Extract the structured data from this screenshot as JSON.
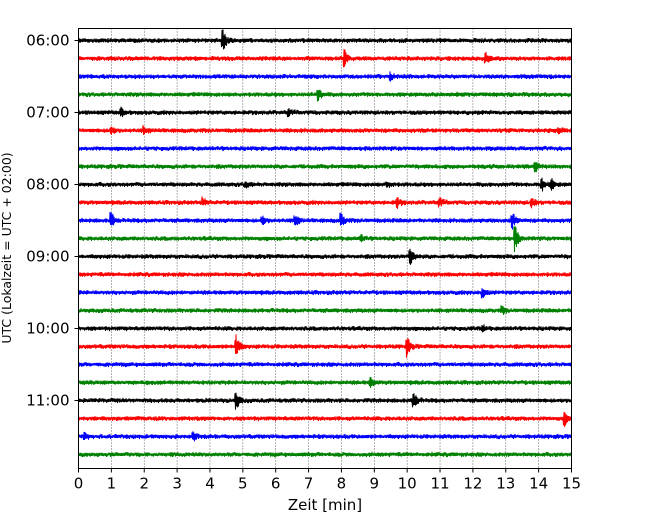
{
  "chart_data": {
    "type": "line",
    "title": "",
    "xlabel": "Zeit  [min]",
    "ylabel": "UTC (Lokalzeit = UTC + 02:00)",
    "xlim": [
      0,
      15
    ],
    "x_ticks": [
      "0",
      "1",
      "2",
      "3",
      "4",
      "5",
      "6",
      "7",
      "8",
      "9",
      "10",
      "11",
      "12",
      "13",
      "14",
      "15"
    ],
    "y_ticks": [
      "06:00",
      "07:00",
      "08:00",
      "09:00",
      "10:00",
      "11:00"
    ],
    "y_tick_row_index": [
      0,
      4,
      8,
      12,
      16,
      20
    ],
    "grid": "vertical dotted",
    "series_colors": [
      "#000000",
      "#ff0000",
      "#0000ff",
      "#008000"
    ],
    "traces": [
      {
        "start": "06:00",
        "color": "#000000",
        "events": [
          [
            4.4,
            1.0
          ]
        ]
      },
      {
        "start": "06:15",
        "color": "#ff0000",
        "events": [
          [
            8.1,
            0.8
          ],
          [
            12.4,
            0.5
          ]
        ]
      },
      {
        "start": "06:30",
        "color": "#0000ff",
        "events": [
          [
            9.5,
            0.3
          ]
        ]
      },
      {
        "start": "06:45",
        "color": "#008000",
        "events": [
          [
            7.3,
            0.6
          ]
        ]
      },
      {
        "start": "07:00",
        "color": "#000000",
        "events": [
          [
            1.3,
            0.4
          ],
          [
            6.4,
            0.3
          ]
        ]
      },
      {
        "start": "07:15",
        "color": "#ff0000",
        "events": [
          [
            1.0,
            0.4
          ],
          [
            2.0,
            0.35
          ],
          [
            14.6,
            0.3
          ]
        ]
      },
      {
        "start": "07:30",
        "color": "#0000ff",
        "events": []
      },
      {
        "start": "07:45",
        "color": "#008000",
        "events": [
          [
            13.9,
            0.8
          ]
        ]
      },
      {
        "start": "08:00",
        "color": "#000000",
        "events": [
          [
            5.1,
            0.3
          ],
          [
            9.4,
            0.3
          ],
          [
            14.1,
            0.6
          ],
          [
            14.4,
            0.5
          ]
        ]
      },
      {
        "start": "08:15",
        "color": "#ff0000",
        "events": [
          [
            3.8,
            0.4
          ],
          [
            9.7,
            0.5
          ],
          [
            11.0,
            0.4
          ],
          [
            13.8,
            0.45
          ]
        ]
      },
      {
        "start": "08:30",
        "color": "#0000ff",
        "events": [
          [
            1.0,
            0.7
          ],
          [
            5.6,
            0.4
          ],
          [
            6.6,
            0.6
          ],
          [
            8.0,
            0.6
          ],
          [
            13.2,
            0.8
          ]
        ]
      },
      {
        "start": "08:45",
        "color": "#008000",
        "events": [
          [
            8.6,
            0.3
          ],
          [
            13.3,
            1.1
          ]
        ]
      },
      {
        "start": "09:00",
        "color": "#000000",
        "events": [
          [
            10.1,
            0.9
          ]
        ]
      },
      {
        "start": "09:15",
        "color": "#ff0000",
        "events": []
      },
      {
        "start": "09:30",
        "color": "#0000ff",
        "events": [
          [
            12.3,
            0.5
          ]
        ]
      },
      {
        "start": "09:45",
        "color": "#008000",
        "events": [
          [
            12.9,
            0.3
          ]
        ]
      },
      {
        "start": "10:00",
        "color": "#000000",
        "events": [
          [
            12.3,
            0.25
          ]
        ]
      },
      {
        "start": "10:15",
        "color": "#ff0000",
        "events": [
          [
            4.8,
            1.1
          ],
          [
            10.0,
            0.9
          ]
        ]
      },
      {
        "start": "10:30",
        "color": "#0000ff",
        "events": []
      },
      {
        "start": "10:45",
        "color": "#008000",
        "events": [
          [
            8.9,
            0.4
          ]
        ]
      },
      {
        "start": "11:00",
        "color": "#000000",
        "events": [
          [
            4.8,
            0.9
          ],
          [
            10.2,
            0.9
          ]
        ]
      },
      {
        "start": "11:15",
        "color": "#ff0000",
        "events": [
          [
            14.8,
            0.6
          ]
        ]
      },
      {
        "start": "11:30",
        "color": "#0000ff",
        "events": [
          [
            0.2,
            0.3
          ],
          [
            3.5,
            0.35
          ]
        ]
      },
      {
        "start": "11:45",
        "color": "#008000",
        "events": []
      }
    ]
  }
}
